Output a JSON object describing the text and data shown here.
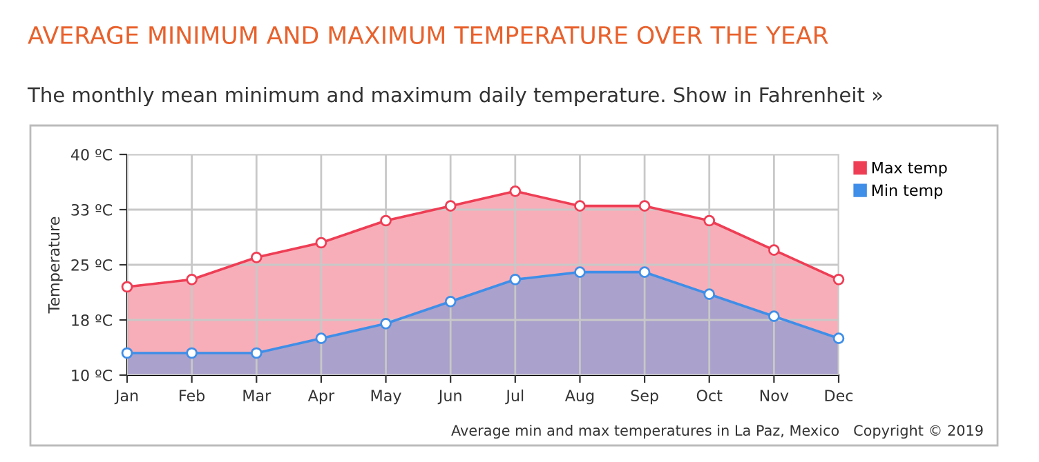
{
  "chart_data": {
    "type": "area",
    "title": "AVERAGE MINIMUM AND MAXIMUM TEMPERATURE OVER THE YEAR",
    "subtitle": "The monthly mean minimum and maximum daily temperature. Show in Fahrenheit »",
    "ylabel": "Temperature",
    "categories": [
      "Jan",
      "Feb",
      "Mar",
      "Apr",
      "May",
      "Jun",
      "Jul",
      "Aug",
      "Sep",
      "Oct",
      "Nov",
      "Dec"
    ],
    "series": [
      {
        "name": "Max temp",
        "color": "#ee3e55",
        "values": [
          22,
          23,
          26,
          28,
          31,
          33,
          35,
          33,
          33,
          31,
          27,
          23
        ]
      },
      {
        "name": "Min temp",
        "color": "#3f8ee8",
        "values": [
          13,
          13,
          13,
          15,
          17,
          20,
          23,
          24,
          24,
          21,
          18,
          15
        ]
      }
    ],
    "ylim": [
      10,
      40
    ],
    "yticks": [
      {
        "value": 10,
        "label": "10 ºC"
      },
      {
        "value": 17.5,
        "label": "18 ºC"
      },
      {
        "value": 25,
        "label": "25 ºC"
      },
      {
        "value": 32.5,
        "label": "33 ºC"
      },
      {
        "value": 40,
        "label": "40 ºC"
      }
    ],
    "grid": true,
    "legend": "top right",
    "marker": "circle",
    "line_style": "solid",
    "annotations": [
      "Average min and max temperatures in La Paz, Mexico   Copyright © 2019"
    ]
  }
}
